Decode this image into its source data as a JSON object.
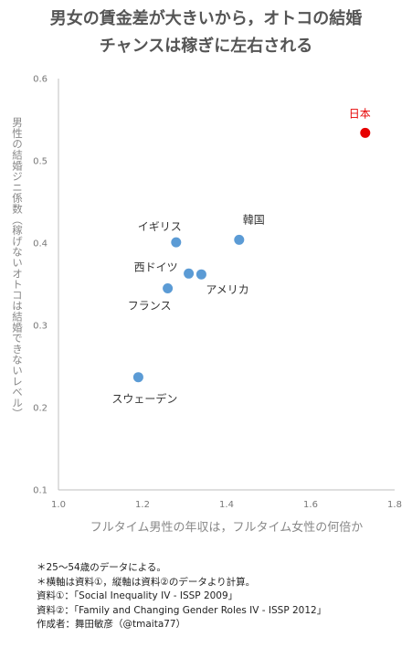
{
  "title_line1": "男女の賃金差が大きいから，オトコの結婚",
  "title_line2": "チャンスは稼ぎに左右される",
  "chart_data": {
    "type": "scatter",
    "xlabel": "フルタイム男性の年収は，フルタイム女性の何倍か",
    "ylabel": "男性の結婚ジニ係数（稼げないオトコは結婚できないレベル）",
    "xlim": [
      1.0,
      1.8
    ],
    "ylim": [
      0.1,
      0.6
    ],
    "xticks": [
      "1.0",
      "1.2",
      "1.4",
      "1.6",
      "1.8"
    ],
    "yticks": [
      "0.1",
      "0.2",
      "0.3",
      "0.4",
      "0.5",
      "0.6"
    ],
    "grid": false,
    "points": [
      {
        "label": "日本",
        "x": 1.73,
        "y": 0.534,
        "color": "#e60000",
        "highlight": true
      },
      {
        "label": "韓国",
        "x": 1.43,
        "y": 0.404,
        "color": "#5b9bd5"
      },
      {
        "label": "イギリス",
        "x": 1.28,
        "y": 0.401,
        "color": "#5b9bd5"
      },
      {
        "label": "西ドイツ",
        "x": 1.31,
        "y": 0.363,
        "color": "#5b9bd5"
      },
      {
        "label": "アメリカ",
        "x": 1.34,
        "y": 0.362,
        "color": "#5b9bd5"
      },
      {
        "label": "フランス",
        "x": 1.26,
        "y": 0.345,
        "color": "#5b9bd5"
      },
      {
        "label": "スウェーデン",
        "x": 1.19,
        "y": 0.237,
        "color": "#5b9bd5"
      }
    ]
  },
  "notes": [
    "＊25～54歳のデータによる。",
    "＊横軸は資料①，縦軸は資料②のデータより計算。",
    "資料①：「Social Inequality IV - ISSP 2009」",
    "資料②：「Family and Changing Gender Roles IV - ISSP 2012」",
    "作成者：舞田敏彦（@tmaita77）"
  ]
}
